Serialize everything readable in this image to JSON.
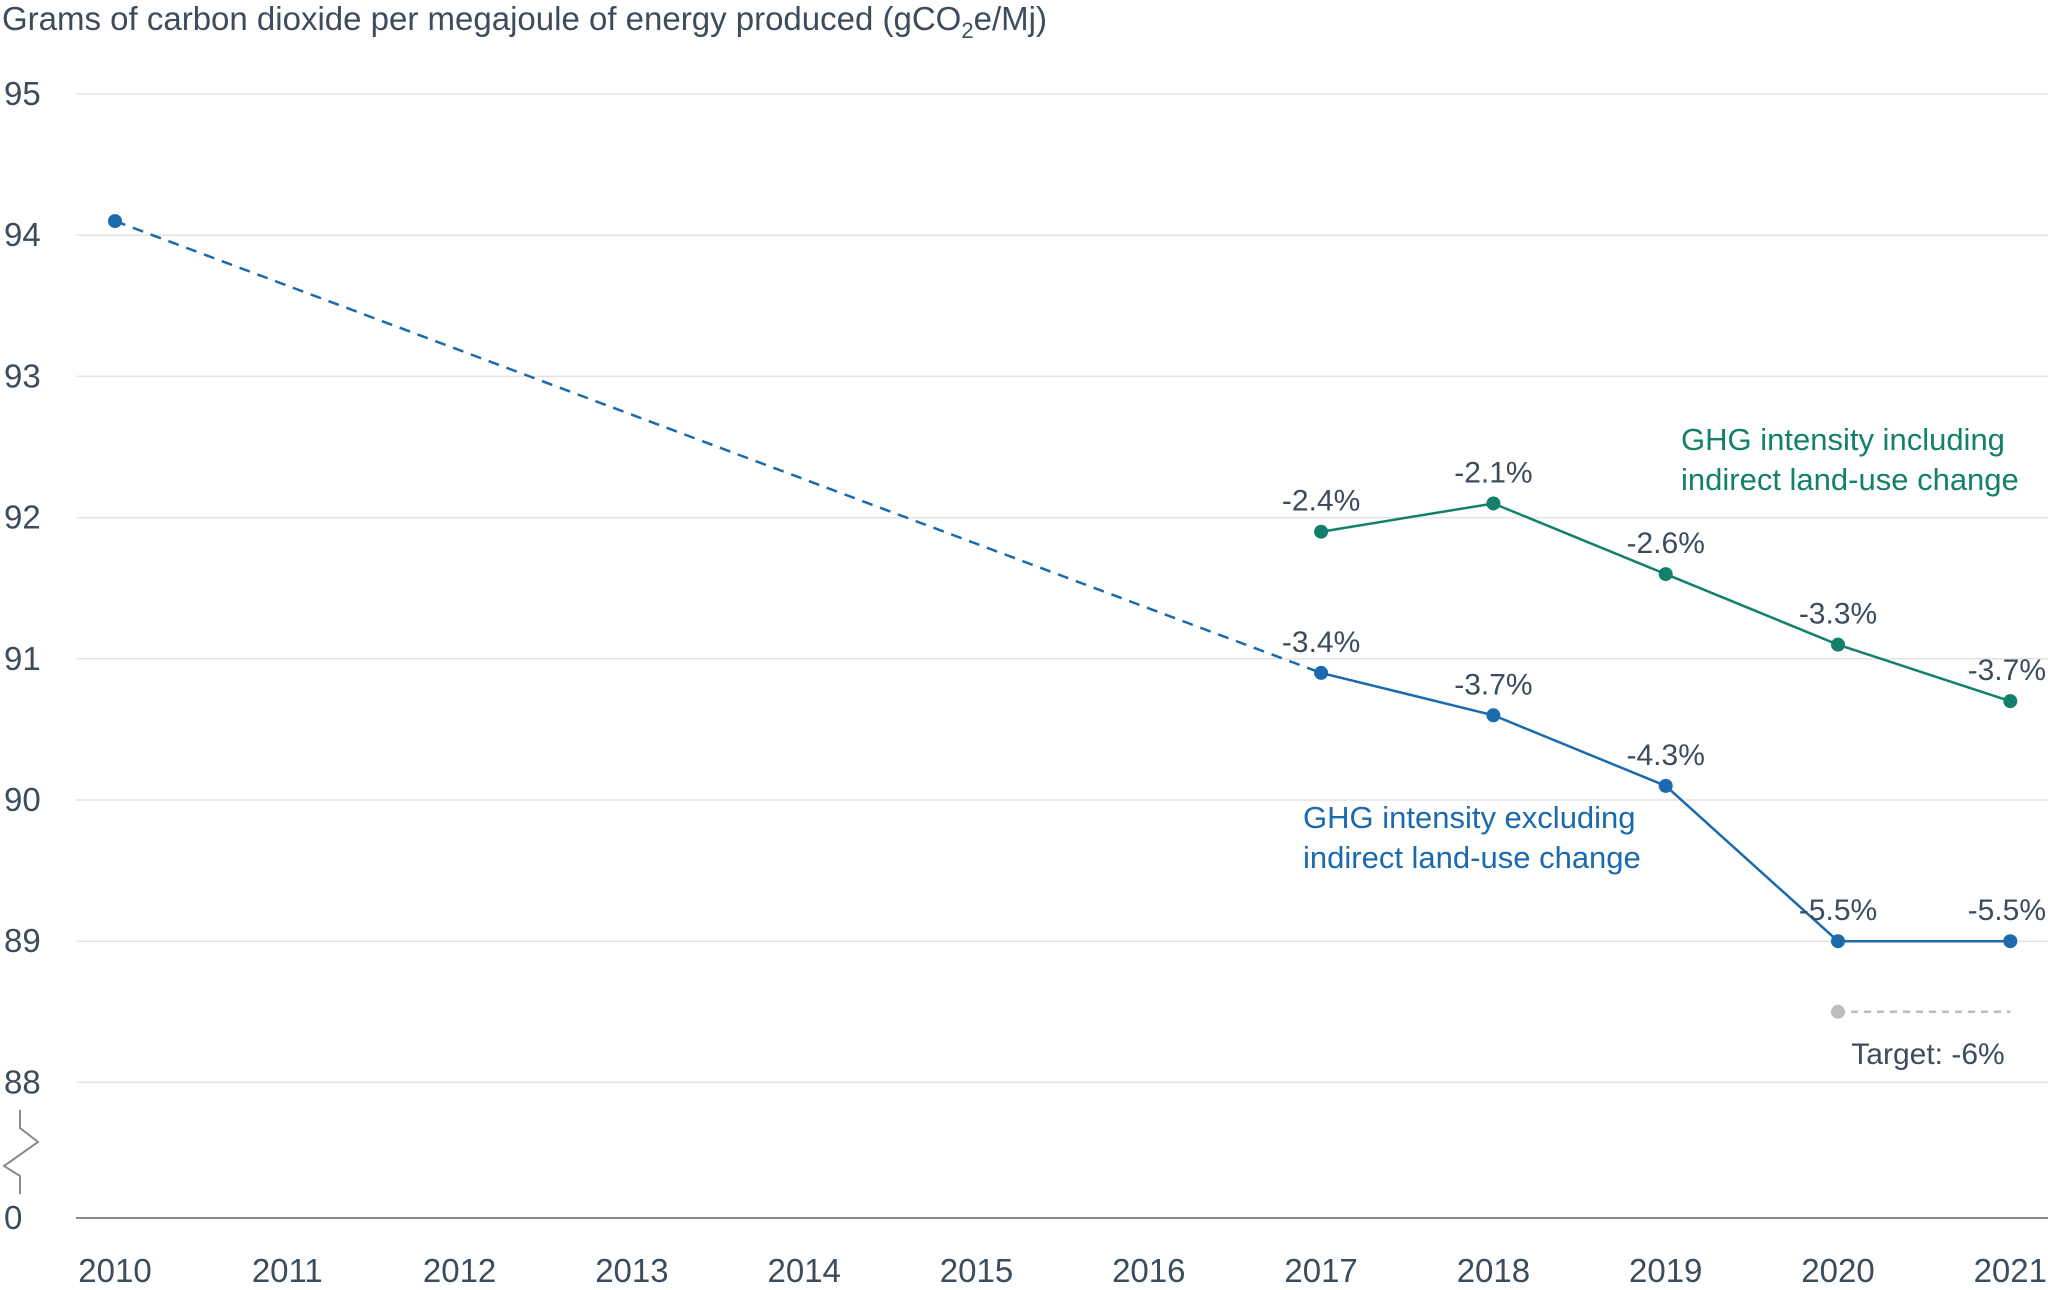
{
  "chart_data": {
    "type": "line",
    "title": "",
    "ylabel_prefix": "Grams of carbon dioxide per megajoule of energy produced (gCO",
    "ylabel_sub": "2",
    "ylabel_suffix": "e/Mj)",
    "xlabel": "",
    "x": [
      "2010",
      "2011",
      "2012",
      "2013",
      "2014",
      "2015",
      "2016",
      "2017",
      "2018",
      "2019",
      "2020",
      "2021"
    ],
    "y_ticks": [
      "0",
      "88",
      "89",
      "90",
      "91",
      "92",
      "93",
      "94",
      "95"
    ],
    "y_axis_break": true,
    "ylim": [
      88,
      95
    ],
    "grid": true,
    "colors": {
      "excluding": "#1a6aad",
      "including": "#13806b",
      "target": "#bdbdbd",
      "grid": "#e3e3e3",
      "text": "#3d4c5c"
    },
    "series": [
      {
        "name_line1": "GHG intensity excluding",
        "name_line2": "indirect land-use change",
        "points": [
          {
            "x": "2010",
            "y": 94.1,
            "label": ""
          },
          {
            "x": "2017",
            "y": 90.9,
            "label": "-3.4%"
          },
          {
            "x": "2018",
            "y": 90.6,
            "label": "-3.7%"
          },
          {
            "x": "2019",
            "y": 90.1,
            "label": "-4.3%"
          },
          {
            "x": "2020",
            "y": 89.0,
            "label": "-5.5%"
          },
          {
            "x": "2021",
            "y": 89.0,
            "label": "-5.5%"
          }
        ],
        "dashed_segment": [
          "2010",
          "2017"
        ]
      },
      {
        "name_line1": "GHG intensity including",
        "name_line2": "indirect land-use change",
        "points": [
          {
            "x": "2017",
            "y": 91.9,
            "label": "-2.4%"
          },
          {
            "x": "2018",
            "y": 92.1,
            "label": "-2.1%"
          },
          {
            "x": "2019",
            "y": 91.6,
            "label": "-2.6%"
          },
          {
            "x": "2020",
            "y": 91.1,
            "label": "-3.3%"
          },
          {
            "x": "2021",
            "y": 90.7,
            "label": "-3.7%"
          }
        ]
      }
    ],
    "target": {
      "label": "Target: -6%",
      "y": 88.5,
      "x_start": "2020",
      "x_end": "2021"
    }
  }
}
